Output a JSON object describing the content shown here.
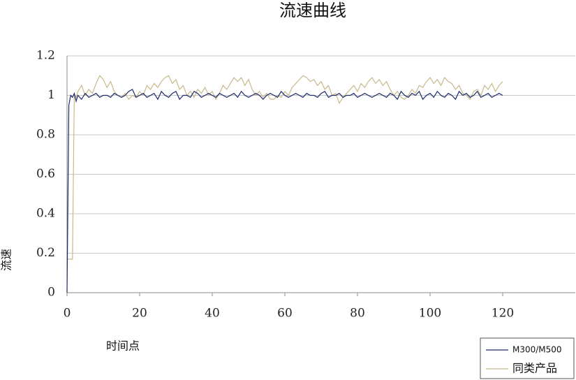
{
  "chart_data": {
    "type": "line",
    "title": "流速曲线",
    "xlabel": "时间点",
    "ylabel": "流速",
    "x": [
      0,
      0.5,
      1,
      1.5,
      2,
      2.5,
      3,
      4,
      5,
      6,
      7,
      8,
      9,
      10,
      11,
      12,
      13,
      14,
      15,
      16,
      17,
      18,
      19,
      20,
      21,
      22,
      23,
      24,
      25,
      26,
      27,
      28,
      29,
      30,
      31,
      32,
      33,
      34,
      35,
      36,
      37,
      38,
      39,
      40,
      41,
      42,
      43,
      44,
      45,
      46,
      47,
      48,
      49,
      50,
      51,
      52,
      53,
      54,
      55,
      56,
      57,
      58,
      59,
      60,
      61,
      62,
      63,
      64,
      65,
      66,
      67,
      68,
      69,
      70,
      71,
      72,
      73,
      74,
      75,
      76,
      77,
      78,
      79,
      80,
      81,
      82,
      83,
      84,
      85,
      86,
      87,
      88,
      89,
      90,
      91,
      92,
      93,
      94,
      95,
      96,
      97,
      98,
      99,
      100,
      101,
      102,
      103,
      104,
      105,
      106,
      107,
      108,
      109,
      110,
      111,
      112,
      113,
      114,
      115,
      116,
      117,
      118,
      119,
      120
    ],
    "series": [
      {
        "name": "M300/M500",
        "color": "#1f2a6b",
        "values": [
          0,
          0.95,
          1.0,
          0.99,
          1.01,
          0.97,
          1.0,
          0.98,
          1.01,
          0.99,
          1.0,
          1.01,
          0.99,
          1.0,
          1.0,
          0.99,
          1.01,
          1.0,
          0.99,
          1.0,
          1.02,
          1.03,
          0.99,
          1.0,
          1.01,
          0.99,
          1.0,
          1.01,
          0.98,
          1.02,
          1.0,
          0.99,
          1.01,
          1.02,
          0.98,
          1.0,
          1.0,
          0.99,
          1.02,
          1.01,
          0.99,
          1.0,
          1.01,
          1.0,
          0.99,
          1.01,
          1.0,
          0.99,
          1.0,
          1.01,
          0.99,
          1.02,
          1.0,
          0.99,
          1.0,
          1.01,
          1.0,
          0.98,
          1.0,
          1.01,
          1.0,
          0.99,
          1.02,
          1.0,
          0.99,
          1.0,
          1.01,
          1.0,
          0.99,
          1.01,
          1.0,
          1.0,
          0.99,
          1.01,
          1.02,
          0.99,
          1.0,
          1.0,
          1.01,
          0.99,
          1.0,
          1.0,
          1.01,
          0.99,
          1.0,
          1.01,
          1.0,
          0.99,
          1.0,
          1.01,
          1.0,
          0.99,
          1.01,
          1.0,
          0.98,
          1.02,
          1.0,
          0.99,
          1.01,
          1.0,
          1.02,
          0.98,
          1.0,
          1.01,
          0.99,
          1.02,
          1.0,
          0.99,
          1.01,
          1.0,
          0.98,
          1.02,
          1.0,
          1.01,
          0.99,
          1.0,
          1.02,
          0.99,
          1.0,
          1.01,
          0.99,
          1.0,
          1.01,
          1.0
        ]
      },
      {
        "name": "同类产品",
        "color": "#c8b98a",
        "values": [
          0.17,
          0.17,
          0.17,
          0.17,
          1.0,
          0.99,
          1.02,
          1.05,
          1.0,
          1.03,
          1.01,
          1.06,
          1.1,
          1.08,
          1.04,
          1.07,
          1.02,
          1.0,
          0.99,
          1.01,
          0.98,
          1.0,
          0.99,
          1.02,
          1.0,
          1.05,
          1.03,
          1.06,
          1.04,
          1.07,
          1.09,
          1.1,
          1.06,
          1.08,
          1.03,
          1.05,
          1.0,
          1.02,
          0.99,
          1.03,
          1.01,
          1.04,
          1.0,
          1.02,
          0.98,
          1.01,
          1.05,
          1.03,
          1.06,
          1.09,
          1.07,
          1.09,
          1.05,
          1.08,
          1.03,
          1.0,
          1.02,
          0.99,
          1.01,
          0.98,
          0.98,
          1.0,
          0.99,
          1.02,
          1.0,
          1.04,
          1.06,
          1.08,
          1.1,
          1.09,
          1.07,
          1.08,
          1.05,
          1.07,
          1.03,
          1.05,
          1.0,
          1.01,
          0.96,
          0.99,
          1.01,
          1.03,
          1.05,
          1.02,
          1.06,
          1.04,
          1.07,
          1.09,
          1.06,
          1.08,
          1.05,
          1.07,
          1.03,
          1.0,
          1.02,
          0.99,
          0.98,
          1.0,
          1.03,
          1.01,
          1.05,
          1.04,
          1.07,
          1.09,
          1.06,
          1.08,
          1.05,
          1.09,
          1.07,
          1.06,
          1.03,
          1.05,
          1.01,
          1.0,
          0.98,
          1.02,
          1.03,
          1.0,
          1.05,
          1.03,
          1.06,
          1.02,
          1.05,
          1.07
        ]
      }
    ],
    "xlim": [
      0,
      140
    ],
    "xticks": [
      0,
      20,
      40,
      60,
      80,
      100,
      120
    ],
    "ylim": [
      0,
      1.2
    ],
    "yticks": [
      0,
      0.2,
      0.4,
      0.6,
      0.8,
      1,
      1.2
    ],
    "grid": true,
    "legend": "lower right"
  }
}
